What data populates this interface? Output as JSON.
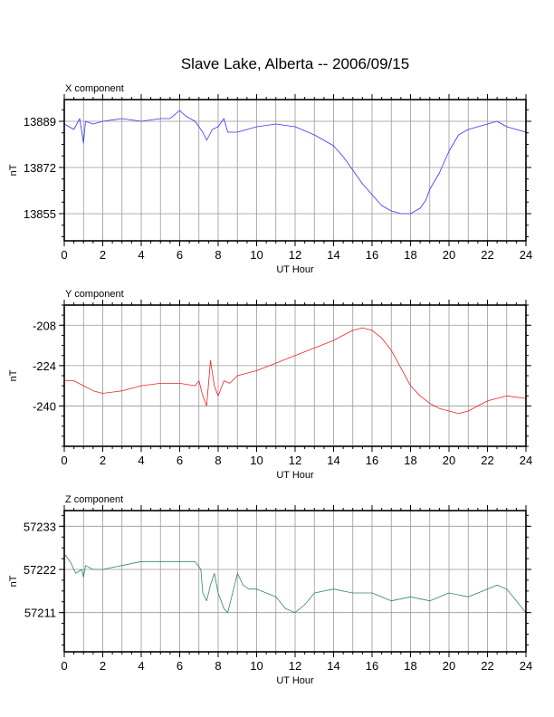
{
  "title": "Slave Lake, Alberta -- 2006/09/15",
  "chart_data": [
    {
      "type": "line",
      "label": "X component",
      "xlabel": "UT Hour",
      "ylabel": "nT",
      "xlim": [
        0,
        24
      ],
      "ylim": [
        13845,
        13897
      ],
      "xticks": [
        0,
        2,
        4,
        6,
        8,
        10,
        12,
        14,
        16,
        18,
        20,
        22,
        24
      ],
      "yticks": [
        13889,
        13872,
        13855
      ],
      "color": "#3333ff",
      "series": [
        {
          "x": [
            0,
            0.5,
            0.8,
            1.0,
            1.1,
            1.5,
            2,
            3,
            4,
            5,
            5.5,
            6,
            6.3,
            6.8,
            7.2,
            7.4,
            7.7,
            8.0,
            8.3,
            8.5,
            9,
            10,
            11,
            12,
            13,
            14,
            14.5,
            15,
            15.5,
            16,
            16.5,
            17,
            17.5,
            18,
            18.5,
            18.8,
            19,
            19.5,
            20,
            20.5,
            21,
            22,
            22.5,
            23,
            24
          ],
          "y": [
            13888,
            13886,
            13890,
            13881,
            13889,
            13888,
            13889,
            13890,
            13889,
            13890,
            13890,
            13893,
            13891,
            13889,
            13885,
            13882,
            13886,
            13887,
            13890,
            13885,
            13885,
            13887,
            13888,
            13887,
            13884,
            13880,
            13876,
            13871,
            13866,
            13862,
            13858,
            13856,
            13855,
            13855,
            13857,
            13860,
            13864,
            13870,
            13878,
            13884,
            13886,
            13888,
            13889,
            13887,
            13885
          ]
        }
      ]
    },
    {
      "type": "line",
      "label": "Y component",
      "xlabel": "UT Hour",
      "ylabel": "nT",
      "xlim": [
        0,
        24
      ],
      "ylim": [
        -256,
        -200
      ],
      "xticks": [
        0,
        2,
        4,
        6,
        8,
        10,
        12,
        14,
        16,
        18,
        20,
        22,
        24
      ],
      "yticks": [
        -208,
        -224,
        -240
      ],
      "color": "#ee2222",
      "series": [
        {
          "x": [
            0,
            0.5,
            1,
            1.5,
            2,
            3,
            4,
            5,
            6,
            6.8,
            7.0,
            7.2,
            7.4,
            7.6,
            7.8,
            8.0,
            8.3,
            8.6,
            9,
            10,
            11,
            12,
            13,
            14,
            14.5,
            15,
            15.5,
            16,
            16.5,
            17,
            17.5,
            18,
            18.5,
            19,
            19.5,
            20,
            20.5,
            21,
            21.5,
            22,
            23,
            24
          ],
          "y": [
            -230,
            -230,
            -232,
            -234,
            -235,
            -234,
            -232,
            -231,
            -231,
            -232,
            -230,
            -236,
            -240,
            -222,
            -232,
            -236,
            -230,
            -231,
            -228,
            -226,
            -223,
            -220,
            -217,
            -214,
            -212,
            -210,
            -209,
            -210,
            -213,
            -218,
            -225,
            -232,
            -236,
            -239,
            -241,
            -242,
            -243,
            -242,
            -240,
            -238,
            -236,
            -237
          ]
        }
      ]
    },
    {
      "type": "line",
      "label": "Z component",
      "xlabel": "UT Hour",
      "ylabel": "nT",
      "xlim": [
        0,
        24
      ],
      "ylim": [
        57201,
        57237
      ],
      "xticks": [
        0,
        2,
        4,
        6,
        8,
        10,
        12,
        14,
        16,
        18,
        20,
        22,
        24
      ],
      "yticks": [
        57233,
        57222,
        57211
      ],
      "color": "#2e8b57",
      "series": [
        {
          "x": [
            0,
            0.3,
            0.6,
            0.9,
            1.0,
            1.1,
            1.5,
            2,
            3,
            4,
            5,
            6,
            6.8,
            7.1,
            7.2,
            7.4,
            7.6,
            7.8,
            8.0,
            8.3,
            8.5,
            8.7,
            9.0,
            9.3,
            9.6,
            10,
            11,
            11.5,
            12,
            12.5,
            13,
            14,
            15,
            16,
            17,
            18,
            19,
            20,
            21,
            22,
            22.5,
            23,
            24
          ],
          "y": [
            57226,
            57224,
            57221,
            57222,
            57220,
            57223,
            57222,
            57222,
            57223,
            57224,
            57224,
            57224,
            57224,
            57222,
            57216,
            57214,
            57218,
            57221,
            57216,
            57212,
            57211,
            57215,
            57221,
            57218,
            57217,
            57217,
            57215,
            57212,
            57211,
            57213,
            57216,
            57217,
            57216,
            57216,
            57214,
            57215,
            57214,
            57216,
            57215,
            57217,
            57218,
            57217,
            57211
          ]
        }
      ]
    }
  ]
}
